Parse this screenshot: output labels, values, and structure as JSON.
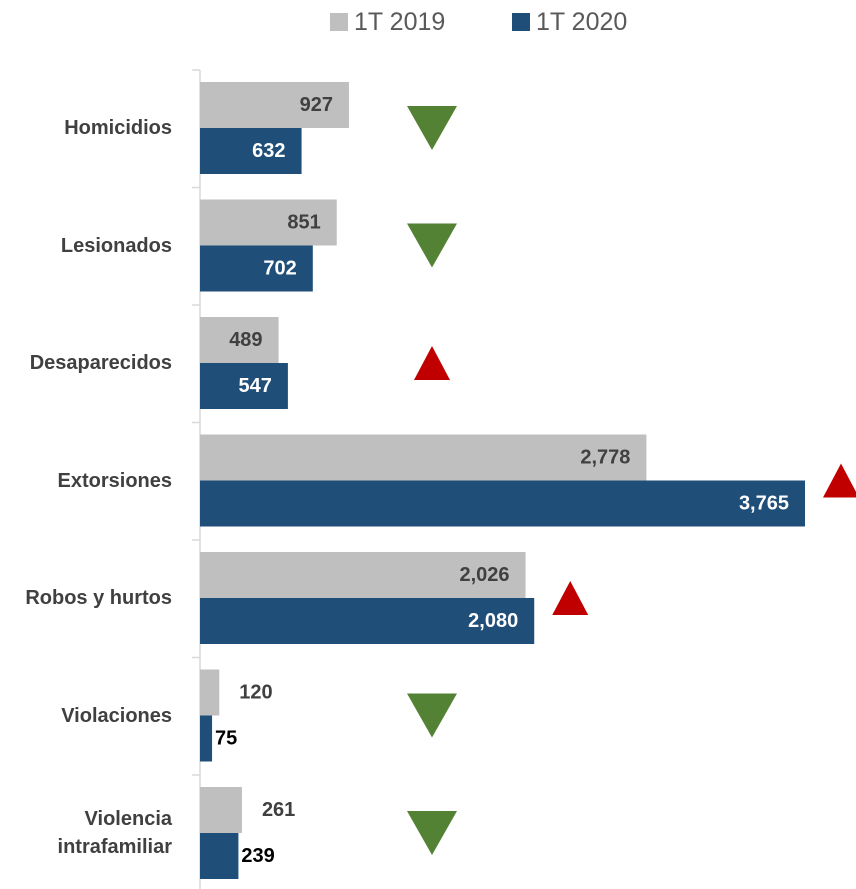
{
  "chart_data": {
    "type": "bar",
    "orientation": "horizontal",
    "categories": [
      "Homicidios",
      "Lesionados",
      "Desaparecidos",
      "Extorsiones",
      "Robos y hurtos",
      "Violaciones",
      "Violencia intrafamiliar"
    ],
    "series": [
      {
        "name": "1T 2019",
        "color": "#bfbfbf",
        "values": [
          927,
          851,
          489,
          2778,
          2026,
          120,
          261
        ],
        "value_labels": [
          "927",
          "851",
          "489",
          "2,778",
          "2,026",
          "120",
          "261"
        ]
      },
      {
        "name": "1T 2020",
        "color": "#1f4e79",
        "values": [
          632,
          702,
          547,
          3765,
          2080,
          75,
          239
        ],
        "value_labels": [
          "632",
          "702",
          "547",
          "3,765",
          "2,080",
          "75",
          "239"
        ]
      }
    ],
    "up_color": "#c00000",
    "down_color": "#548235",
    "legend": "top"
  }
}
